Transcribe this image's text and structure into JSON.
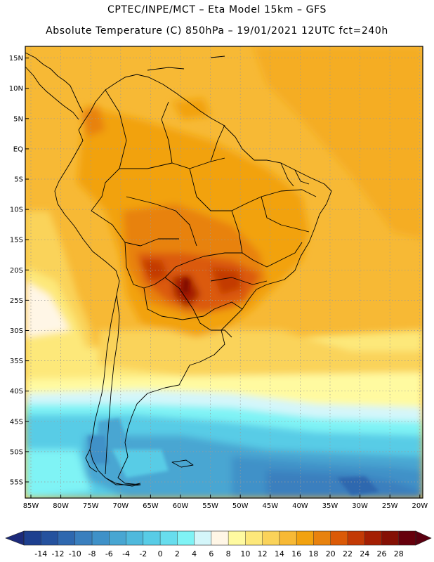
{
  "header": {
    "line1": "CPTEC/INPE/MCT –  Eta Model 15km – GFS",
    "line2": "Absolute Temperature (C) 850hPa – 19/01/2021 12UTC fct=240h"
  },
  "map": {
    "lat_labels": [
      "15N",
      "10N",
      "5N",
      "EQ",
      "5S",
      "10S",
      "15S",
      "20S",
      "25S",
      "30S",
      "35S",
      "40S",
      "45S",
      "50S",
      "55S"
    ],
    "lon_labels": [
      "85W",
      "80W",
      "75W",
      "70W",
      "65W",
      "60W",
      "55W",
      "50W",
      "45W",
      "40W",
      "35W",
      "30W",
      "25W",
      "20W"
    ]
  },
  "colorbar": {
    "labels": [
      "-14",
      "-12",
      "-10",
      "-8",
      "-6",
      "-4",
      "-2",
      "0",
      "2",
      "4",
      "6",
      "8",
      "10",
      "12",
      "14",
      "16",
      "18",
      "20",
      "22",
      "24",
      "26",
      "28"
    ],
    "colors": [
      "#1d3f8f",
      "#25529e",
      "#2f68af",
      "#3a7fbe",
      "#3f91c8",
      "#48a6d2",
      "#4fb9dc",
      "#58cce6",
      "#67dded",
      "#7ff3f5",
      "#d4f6fa",
      "#fff6e6",
      "#fffaa0",
      "#fde87a",
      "#fad35a",
      "#f7b935",
      "#f2a20f",
      "#e8820e",
      "#db5a07",
      "#c33a05",
      "#a41f03",
      "#851004",
      "#66000c"
    ],
    "lo_arrow": "#1c2a7a",
    "hi_arrow": "#5a0010"
  }
}
